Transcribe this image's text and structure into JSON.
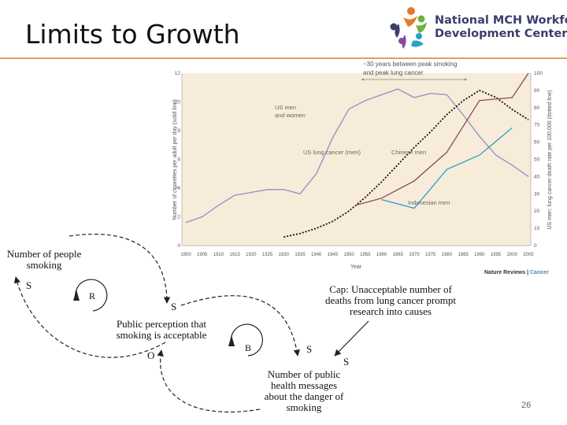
{
  "slide": {
    "title": "Limits to Growth",
    "page_number": "26",
    "logo": {
      "line1_a": "National ",
      "line1_b": "MCH",
      "line1_c": " Workforce",
      "line2": "Development Center"
    },
    "credit_a": "Nature Reviews",
    "credit_sep": " | ",
    "credit_b": "Cancer"
  },
  "chart_data": {
    "type": "line",
    "xlabel": "Year",
    "ylabel_left": "Number of cigarettes per adult per day (solid line)",
    "ylabel_right": "US men: lung cancer death rate per 100,000 (dotted line)",
    "xlim": [
      1900,
      2005
    ],
    "ylim_left": [
      0,
      12
    ],
    "ylim_right": [
      0,
      100
    ],
    "x_ticks": [
      "1900",
      "1905",
      "1910",
      "1915",
      "1920",
      "1925",
      "1930",
      "1935",
      "1940",
      "1945",
      "1950",
      "1955",
      "1960",
      "1965",
      "1970",
      "1975",
      "1980",
      "1985",
      "1990",
      "1995",
      "2000",
      "2005"
    ],
    "y_left_ticks": [
      "0",
      "2",
      "4",
      "6",
      "8",
      "10",
      "12"
    ],
    "y_right_ticks": [
      "0",
      "10",
      "20",
      "30",
      "40",
      "50",
      "60",
      "70",
      "80",
      "90",
      "100"
    ],
    "annotation": "~30 years between peak smoking and peak lung cancer",
    "series": [
      {
        "name": "US men and women",
        "axis": "left",
        "color": "#8f8fc2",
        "style": "solid",
        "x": [
          1900,
          1905,
          1910,
          1915,
          1920,
          1925,
          1930,
          1935,
          1940,
          1945,
          1950,
          1955,
          1960,
          1965,
          1970,
          1975,
          1980,
          1985,
          1990,
          1995,
          2000,
          2005
        ],
        "values": [
          1.6,
          2.0,
          2.8,
          3.5,
          3.7,
          3.9,
          3.9,
          3.6,
          5.0,
          7.5,
          9.5,
          10.1,
          10.5,
          10.9,
          10.3,
          10.6,
          10.5,
          9.1,
          7.6,
          6.3,
          5.6,
          4.8
        ]
      },
      {
        "name": "US lung cancer (men)",
        "axis": "right",
        "color": "#111111",
        "style": "dotted",
        "x": [
          1930,
          1935,
          1940,
          1945,
          1950,
          1955,
          1960,
          1965,
          1970,
          1975,
          1980,
          1985,
          1990,
          1995,
          2000,
          2005
        ],
        "values": [
          5,
          7,
          10,
          14,
          20,
          28,
          37,
          47,
          57,
          66,
          76,
          84,
          90,
          86,
          79,
          73
        ]
      },
      {
        "name": "Chinese men",
        "axis": "left",
        "color": "#8a4a63",
        "style": "solid",
        "x": [
          1952,
          1960,
          1970,
          1980,
          1990,
          2000,
          2005
        ],
        "values": [
          2.8,
          3.3,
          4.5,
          6.5,
          10.1,
          10.3,
          12.0
        ]
      },
      {
        "name": "Indonesian men",
        "axis": "left",
        "color": "#2aa0c8",
        "style": "solid",
        "x": [
          1960,
          1970,
          1980,
          1990,
          2000
        ],
        "values": [
          3.2,
          2.6,
          5.3,
          6.3,
          8.2
        ]
      }
    ]
  },
  "diagram": {
    "nodes": {
      "people_smoking": "Number of people smoking",
      "public_perception": "Public perception that smoking is acceptable",
      "health_messages": "Number of public health messages about the danger of smoking",
      "cap": "Cap: Unacceptable number of deaths from lung cancer prompt research into causes"
    },
    "loops": {
      "reinforcing": "R",
      "balancing": "B"
    },
    "polarities": {
      "s1": "S",
      "s2": "S",
      "o": "O",
      "s3": "S",
      "s4": "S"
    }
  }
}
